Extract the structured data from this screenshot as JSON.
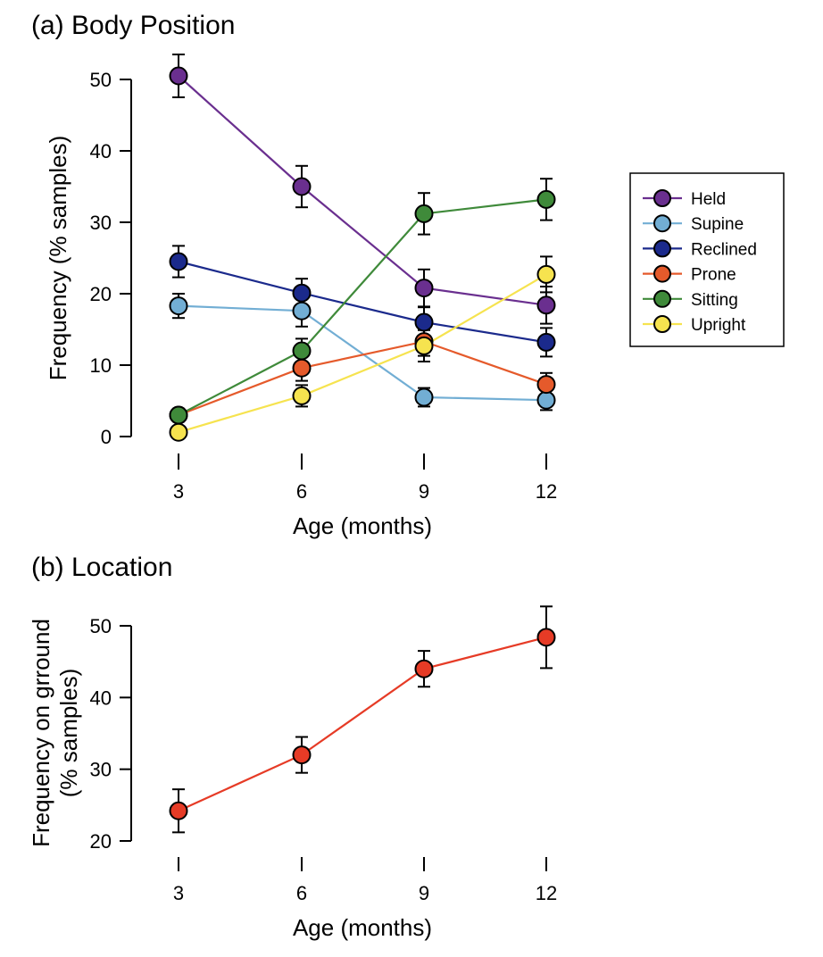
{
  "chart_data": [
    {
      "type": "line",
      "title": "(a) Body Position",
      "xlabel": "Age (months)",
      "ylabel": "Frequency (% samples)",
      "x": [
        3,
        6,
        9,
        12
      ],
      "x_ticks": [
        "3",
        "6",
        "9",
        "12"
      ],
      "y_ticks": [
        "0",
        "10",
        "20",
        "30",
        "40",
        "50"
      ],
      "ylim": [
        0,
        52
      ],
      "error_bars": true,
      "legend_position": "right",
      "series": [
        {
          "name": "Held",
          "color": "#6a2f8f",
          "values": [
            50.5,
            35.0,
            20.8,
            18.4
          ],
          "errors": [
            3.0,
            2.9,
            2.6,
            2.6
          ]
        },
        {
          "name": "Supine",
          "color": "#72aed4",
          "values": [
            18.3,
            17.6,
            5.5,
            5.1
          ],
          "errors": [
            1.7,
            2.2,
            1.3,
            1.4
          ]
        },
        {
          "name": "Reclined",
          "color": "#1b2a8c",
          "values": [
            24.5,
            20.1,
            16.0,
            13.2
          ],
          "errors": [
            2.2,
            2.0,
            2.1,
            2.0
          ]
        },
        {
          "name": "Prone",
          "color": "#e55a2b",
          "values": [
            3.0,
            9.6,
            13.3,
            7.3
          ],
          "errors": [
            0.8,
            1.8,
            2.0,
            1.6
          ]
        },
        {
          "name": "Sitting",
          "color": "#3f8a3a",
          "values": [
            3.0,
            12.0,
            31.2,
            33.2
          ],
          "errors": [
            0.9,
            1.7,
            2.9,
            2.9
          ]
        },
        {
          "name": "Upright",
          "color": "#f6e34f",
          "values": [
            0.6,
            5.7,
            12.7,
            22.7
          ],
          "errors": [
            0.5,
            1.5,
            2.2,
            2.5
          ]
        }
      ]
    },
    {
      "type": "line",
      "title": "(b) Location",
      "xlabel": "Age (months)",
      "ylabel_lines": [
        "Frequency on grround",
        "(% samples)"
      ],
      "x": [
        3,
        6,
        9,
        12
      ],
      "x_ticks": [
        "3",
        "6",
        "9",
        "12"
      ],
      "y_ticks": [
        "20",
        "30",
        "40",
        "50"
      ],
      "ylim": [
        20,
        50
      ],
      "error_bars": true,
      "series": [
        {
          "color": "#e63b26",
          "values": [
            24.2,
            32.0,
            44.0,
            48.4
          ],
          "errors": [
            3.0,
            2.5,
            2.5,
            4.3
          ]
        }
      ]
    }
  ]
}
